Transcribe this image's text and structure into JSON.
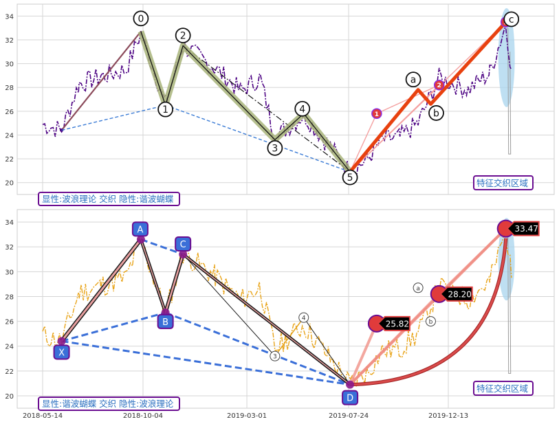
{
  "chart_data": [
    {
      "type": "line",
      "panel": "top",
      "ylim": [
        19,
        35
      ],
      "yticks": [
        20,
        22,
        24,
        26,
        28,
        30,
        32,
        34
      ],
      "grid": true,
      "note_box": "显性:波浪理论 交织 隐性:谐波蝴蝶",
      "zone_label": "特征交织区域",
      "colors": {
        "price": "#4b0082",
        "impulse": "#e8410f",
        "wave_band": "#a8b47a",
        "fan": "#f4a0a0",
        "dashed": "#3a7bd5",
        "zone": "#a8d4ee",
        "note_border": "#6a0d91",
        "note_text": "#2a6fc0"
      },
      "wave_points": [
        {
          "label": "0",
          "date": "2018-10-01",
          "value": 32.7
        },
        {
          "label": "1",
          "date": "2018-11-05",
          "value": 26.5
        },
        {
          "label": "2",
          "date": "2018-11-30",
          "value": 31.5
        },
        {
          "label": "3",
          "date": "2019-04-10",
          "value": 23.6
        },
        {
          "label": "4",
          "date": "2019-05-21",
          "value": 25.8
        },
        {
          "label": "5",
          "date": "2019-07-26",
          "value": 20.9
        },
        {
          "label": "a",
          "date": "2019-10-31",
          "value": 27.8
        },
        {
          "label": "b",
          "date": "2019-11-18",
          "value": 26.6
        },
        {
          "label": "c",
          "date": "2020-03-04",
          "value": 33.5
        }
      ],
      "markers": [
        {
          "label": "1",
          "date": "2019-09-02",
          "value": 25.8
        },
        {
          "label": "2",
          "date": "2019-11-30",
          "value": 28.2
        },
        {
          "label": "3",
          "date": "2020-03-04",
          "value": 33.5
        }
      ]
    },
    {
      "type": "line",
      "panel": "bottom",
      "ylim": [
        19,
        35
      ],
      "yticks": [
        20,
        22,
        24,
        26,
        28,
        30,
        32,
        34
      ],
      "xticks": [
        "2018-05-14",
        "2018-10-04",
        "2019-03-01",
        "2019-07-24",
        "2019-12-13"
      ],
      "grid": true,
      "note_box": "显性:谐波蝴蝶 交织 隐性:波浪理论",
      "zone_label": "特征交织区域",
      "colors": {
        "price": "#e8a317",
        "pattern": "#e8a0a0",
        "pattern_edge": "#1a1a1a",
        "dashed": "#3a6fd8",
        "arc": "#d94b4b",
        "label_box": "#3a6fd8",
        "tag_bg": "#000000",
        "tag_border": "#e04040"
      },
      "pattern_points": [
        {
          "label": "X",
          "date": "2018-06-10",
          "value": 24.4
        },
        {
          "label": "A",
          "date": "2018-10-01",
          "value": 32.6
        },
        {
          "label": "B",
          "date": "2018-11-05",
          "value": 26.7
        },
        {
          "label": "C",
          "date": "2018-11-30",
          "value": 31.4
        },
        {
          "label": "D",
          "date": "2019-07-26",
          "value": 20.9
        }
      ],
      "wave_points": [
        {
          "label": "3",
          "date": "2019-04-10",
          "value": 23.2
        },
        {
          "label": "4",
          "date": "2019-05-21",
          "value": 26.3
        },
        {
          "label": "a",
          "date": "2019-10-31",
          "value": 28.7
        },
        {
          "label": "b",
          "date": "2019-11-18",
          "value": 26.0
        }
      ],
      "targets": [
        {
          "label": "25.82",
          "date": "2019-09-02",
          "value": 25.82
        },
        {
          "label": "28.20",
          "date": "2019-11-30",
          "value": 28.2
        },
        {
          "label": "33.47",
          "date": "2020-03-04",
          "value": 33.47
        }
      ]
    }
  ]
}
